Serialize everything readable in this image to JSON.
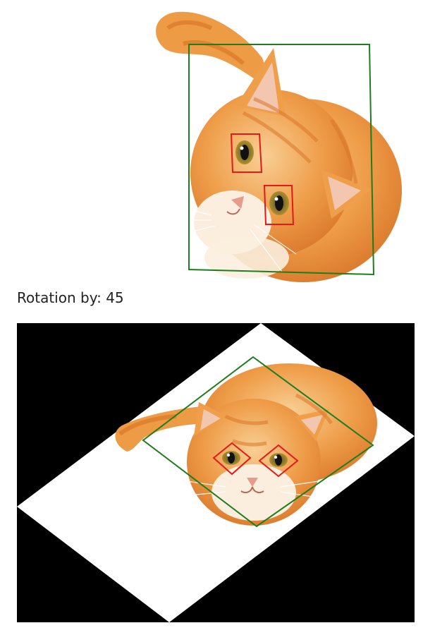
{
  "caption": {
    "label": "Rotation by:",
    "angle": "45"
  },
  "colors": {
    "face_box": "#1e7d1e",
    "eye_box": "#e41a1a",
    "fur_light": "#f6c283",
    "fur_mid": "#ee9b45",
    "fur_dark": "#d9772a",
    "muzzle": "#fbeede",
    "background_fill": "#000000",
    "canvas": "#ffffff"
  }
}
